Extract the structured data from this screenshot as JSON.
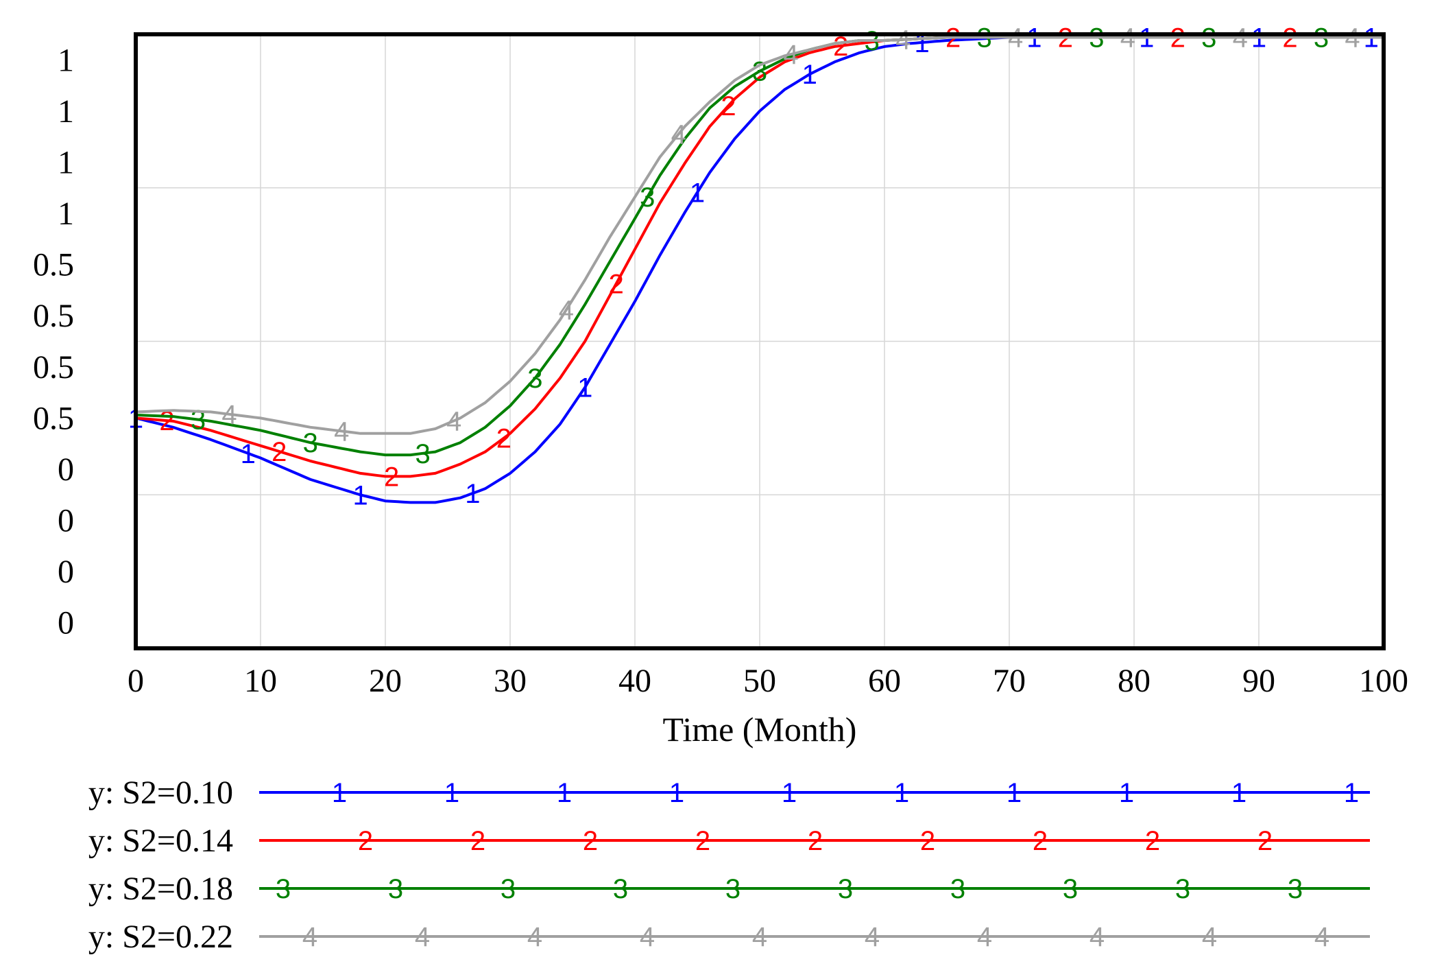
{
  "chart_data": {
    "type": "line",
    "title": "",
    "xlabel": "Time (Month)",
    "ylabel": "",
    "xlim": [
      0,
      100
    ],
    "ylim": [
      -0.25,
      1.75
    ],
    "grid": true,
    "legend_position": "bottom",
    "x_ticks": [
      "0",
      "10",
      "20",
      "30",
      "40",
      "50",
      "60",
      "70",
      "80",
      "90",
      "100"
    ],
    "y_tick_labels": [
      "1",
      "1",
      "1",
      "1",
      "0.5",
      "0.5",
      "0.5",
      "0.5",
      "0",
      "0",
      "0",
      "0"
    ],
    "series": [
      {
        "name": "y: S2=0.10",
        "marker": "1",
        "color": "#0000ff",
        "x": [
          0,
          3,
          6,
          10,
          14,
          18,
          20,
          22,
          24,
          26,
          28,
          30,
          32,
          34,
          36,
          38,
          40,
          42,
          44,
          46,
          48,
          50,
          52,
          54,
          56,
          58,
          60,
          62,
          65,
          70,
          100
        ],
        "y": [
          0.5,
          0.47,
          0.43,
          0.37,
          0.3,
          0.25,
          0.23,
          0.225,
          0.225,
          0.24,
          0.27,
          0.32,
          0.39,
          0.48,
          0.6,
          0.74,
          0.88,
          1.03,
          1.17,
          1.3,
          1.41,
          1.5,
          1.57,
          1.62,
          1.66,
          1.69,
          1.71,
          1.72,
          1.73,
          1.74,
          1.74
        ]
      },
      {
        "name": "y: S2=0.14",
        "marker": "2",
        "color": "#ff0000",
        "x": [
          0,
          3,
          6,
          10,
          14,
          18,
          20,
          22,
          24,
          26,
          28,
          30,
          32,
          34,
          36,
          38,
          40,
          42,
          44,
          46,
          48,
          50,
          52,
          54,
          56,
          58,
          60,
          65,
          70,
          100
        ],
        "y": [
          0.5,
          0.49,
          0.46,
          0.41,
          0.36,
          0.32,
          0.31,
          0.31,
          0.32,
          0.35,
          0.39,
          0.45,
          0.53,
          0.63,
          0.75,
          0.9,
          1.05,
          1.2,
          1.33,
          1.45,
          1.54,
          1.61,
          1.66,
          1.69,
          1.71,
          1.72,
          1.73,
          1.74,
          1.74,
          1.74
        ]
      },
      {
        "name": "y: S2=0.18",
        "marker": "3",
        "color": "#008000",
        "x": [
          0,
          3,
          6,
          10,
          14,
          18,
          20,
          22,
          24,
          26,
          28,
          30,
          32,
          34,
          36,
          38,
          40,
          42,
          44,
          46,
          48,
          50,
          52,
          54,
          56,
          58,
          60,
          65,
          70,
          100
        ],
        "y": [
          0.51,
          0.505,
          0.49,
          0.46,
          0.42,
          0.39,
          0.38,
          0.38,
          0.39,
          0.42,
          0.47,
          0.54,
          0.63,
          0.74,
          0.87,
          1.01,
          1.15,
          1.29,
          1.41,
          1.51,
          1.58,
          1.63,
          1.67,
          1.7,
          1.72,
          1.73,
          1.73,
          1.74,
          1.74,
          1.74
        ]
      },
      {
        "name": "y: S2=0.22",
        "marker": "4",
        "color": "#a0a0a0",
        "x": [
          0,
          3,
          6,
          8,
          10,
          14,
          18,
          20,
          22,
          24,
          26,
          28,
          30,
          32,
          34,
          36,
          38,
          40,
          42,
          44,
          46,
          48,
          50,
          52,
          54,
          56,
          58,
          60,
          65,
          70,
          100
        ],
        "y": [
          0.52,
          0.525,
          0.52,
          0.51,
          0.5,
          0.47,
          0.45,
          0.45,
          0.45,
          0.465,
          0.5,
          0.55,
          0.62,
          0.71,
          0.82,
          0.95,
          1.09,
          1.22,
          1.35,
          1.45,
          1.53,
          1.6,
          1.65,
          1.68,
          1.7,
          1.72,
          1.73,
          1.73,
          1.74,
          1.74,
          1.74
        ]
      }
    ]
  }
}
